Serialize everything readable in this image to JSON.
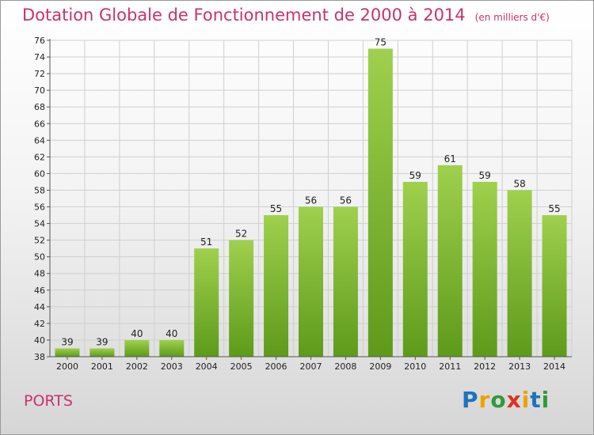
{
  "header": {
    "title": "Dotation Globale de Fonctionnement de 2000 à 2014",
    "unit": "(en milliers d'€)"
  },
  "footer": {
    "place": "PORTS",
    "brand_letters": [
      {
        "char": "P",
        "color": "#1e73be"
      },
      {
        "char": "r",
        "color": "#f0a000"
      },
      {
        "char": "o",
        "color": "#2d9b3a"
      },
      {
        "char": "x",
        "color": "#e0301e"
      },
      {
        "char": "i",
        "color": "#f0a000"
      },
      {
        "char": "t",
        "color": "#1e73be"
      },
      {
        "char": "i",
        "color": "#2d9b3a"
      }
    ]
  },
  "colors": {
    "title": "#c8326e",
    "bar_top": "#9fd04e",
    "bar_bottom": "#5e9a1a",
    "grid": "#cfcfcf",
    "axis_text": "#222222"
  },
  "chart_data": {
    "type": "bar",
    "title": "Dotation Globale de Fonctionnement de 2000 à 2014",
    "subtitle": "(en milliers d'€)",
    "xlabel": "",
    "ylabel": "",
    "categories": [
      "2000",
      "2001",
      "2002",
      "2003",
      "2004",
      "2005",
      "2006",
      "2007",
      "2008",
      "2009",
      "2010",
      "2011",
      "2012",
      "2013",
      "2014"
    ],
    "values": [
      39,
      39,
      40,
      40,
      51,
      52,
      55,
      56,
      56,
      75,
      59,
      61,
      59,
      58,
      55
    ],
    "ylim": [
      38,
      76
    ],
    "yticks": [
      38,
      40,
      42,
      44,
      46,
      48,
      50,
      52,
      54,
      56,
      58,
      60,
      62,
      64,
      66,
      68,
      70,
      72,
      74,
      76
    ],
    "grid": true,
    "data_labels": true
  }
}
